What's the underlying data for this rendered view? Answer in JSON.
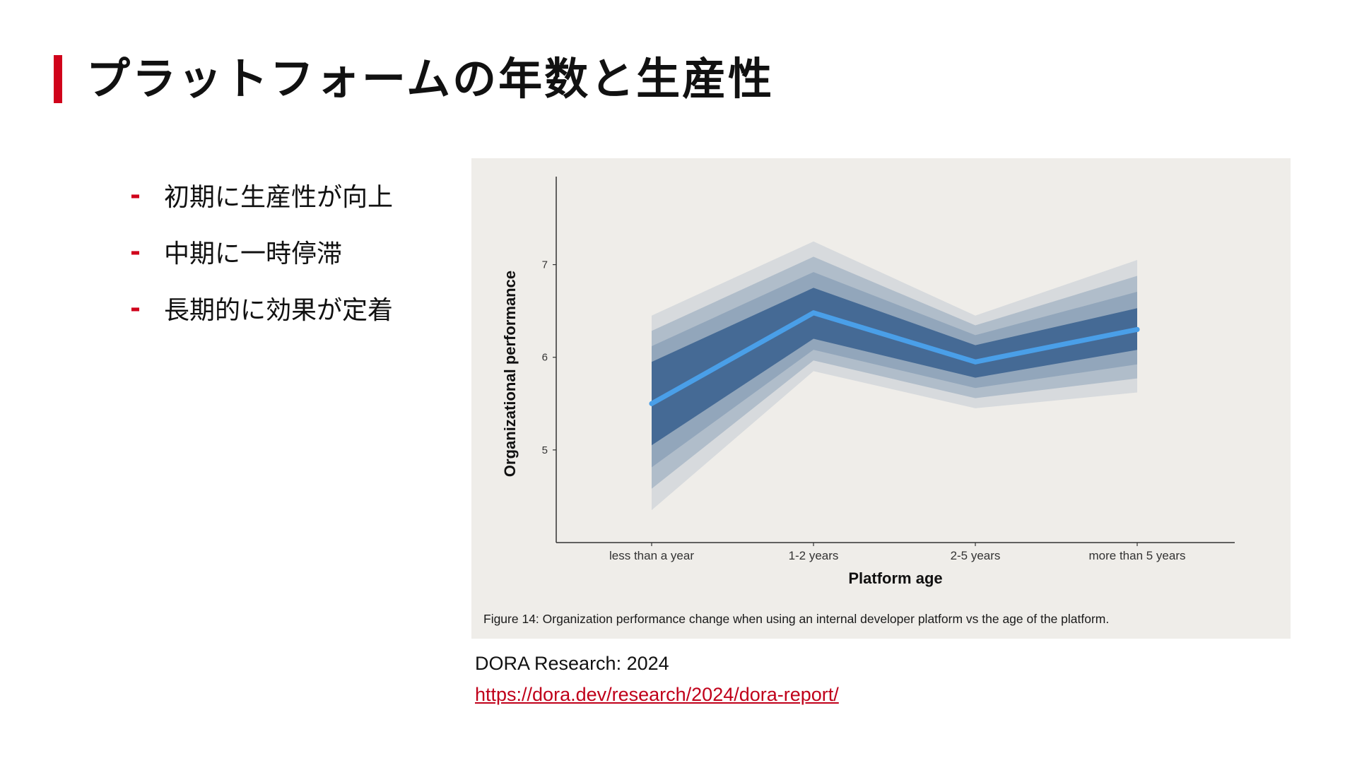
{
  "slide": {
    "title": "プラットフォームの年数と生産性",
    "accent_color": "#d0021b"
  },
  "bullets": [
    {
      "marker": "-",
      "text": "初期に生産性が向上"
    },
    {
      "marker": "-",
      "text": "中期に一時停滞"
    },
    {
      "marker": "-",
      "text": "長期的に効果が定着"
    }
  ],
  "figure": {
    "caption": "Figure 14: Organization performance change when using an internal developer platform vs the age of the platform."
  },
  "source": {
    "label": "DORA Research: 2024",
    "url": "https://dora.dev/research/2024/dora-report/"
  },
  "chart_data": {
    "type": "line",
    "xlabel": "Platform age",
    "ylabel": "Organizational performance",
    "categories": [
      "less than a year",
      "1-2 years",
      "2-5 years",
      "more than 5 years"
    ],
    "yticks": [
      5,
      6,
      7
    ],
    "ylim": [
      4,
      7.95
    ],
    "grid": false,
    "series": [
      {
        "values": [
          5.5,
          6.48,
          5.95,
          6.3
        ],
        "color": "#4a9fe8"
      }
    ],
    "uncertainty_band": {
      "inner_low": [
        5.05,
        6.2,
        5.78,
        6.08
      ],
      "inner_high": [
        5.95,
        6.75,
        6.13,
        6.53
      ],
      "outer_low": [
        4.35,
        5.85,
        5.45,
        5.62
      ],
      "outer_high": [
        6.45,
        7.25,
        6.45,
        7.05
      ],
      "color": "#2b5688"
    }
  }
}
